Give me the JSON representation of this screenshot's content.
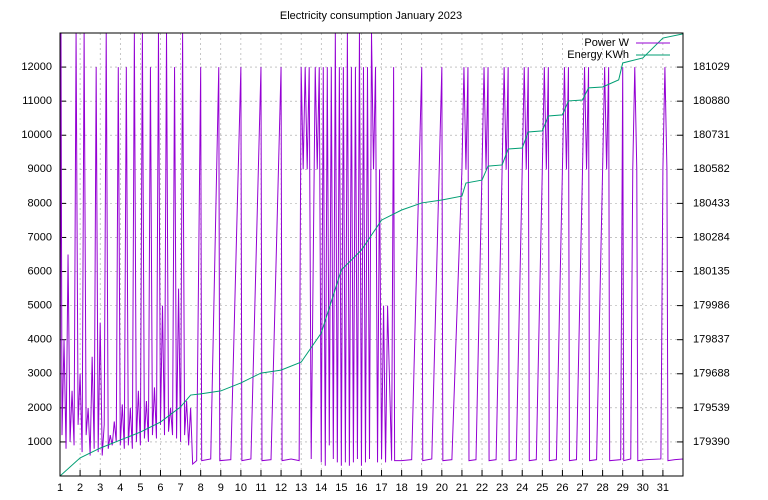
{
  "chart_data": {
    "type": "line",
    "title": "Electricity consumption January 2023",
    "xlim": [
      1,
      32
    ],
    "xticks": [
      1,
      2,
      3,
      4,
      5,
      6,
      7,
      8,
      9,
      10,
      11,
      12,
      13,
      14,
      15,
      16,
      17,
      18,
      19,
      20,
      21,
      22,
      23,
      24,
      25,
      26,
      27,
      28,
      29,
      30,
      31
    ],
    "ylim": [
      0,
      13000
    ],
    "yticks": [
      1000,
      2000,
      3000,
      4000,
      5000,
      6000,
      7000,
      8000,
      9000,
      10000,
      11000,
      12000
    ],
    "y2lim": [
      179241,
      181178
    ],
    "y2ticks": [
      179390,
      179539,
      179688,
      179837,
      179986,
      180135,
      180284,
      180433,
      180582,
      180731,
      180880,
      181029
    ],
    "grid": true,
    "legend": "top-right",
    "series": [
      {
        "name": "Power W",
        "color": "#9400d3",
        "x": [
          1.0,
          1.05,
          1.1,
          1.2,
          1.3,
          1.4,
          1.5,
          1.6,
          1.7,
          1.8,
          1.9,
          2.0,
          2.1,
          2.2,
          2.3,
          2.4,
          2.5,
          2.6,
          2.7,
          2.8,
          2.9,
          3.0,
          3.1,
          3.2,
          3.3,
          3.4,
          3.5,
          3.6,
          3.7,
          3.8,
          3.9,
          4.0,
          4.1,
          4.2,
          4.3,
          4.4,
          4.5,
          4.6,
          4.7,
          4.8,
          4.9,
          5.0,
          5.1,
          5.2,
          5.3,
          5.4,
          5.5,
          5.6,
          5.7,
          5.8,
          5.9,
          6.0,
          6.1,
          6.2,
          6.3,
          6.4,
          6.5,
          6.6,
          6.7,
          6.8,
          6.9,
          7.0,
          7.1,
          7.2,
          7.3,
          7.4,
          7.5,
          7.6,
          7.8,
          8.0,
          8.05,
          8.5,
          8.9,
          8.95,
          9.5,
          10.0,
          10.05,
          10.5,
          11.0,
          11.05,
          11.5,
          12.0,
          12.05,
          12.5,
          12.9,
          13.0,
          13.1,
          13.2,
          13.3,
          13.4,
          13.5,
          13.7,
          13.8,
          13.9,
          14.0,
          14.1,
          14.2,
          14.3,
          14.4,
          14.5,
          14.6,
          14.7,
          14.8,
          14.9,
          15.0,
          15.1,
          15.2,
          15.3,
          15.4,
          15.5,
          15.6,
          15.7,
          15.8,
          15.9,
          16.0,
          16.1,
          16.2,
          16.3,
          16.4,
          16.5,
          16.6,
          16.7,
          16.8,
          16.9,
          17.0,
          17.1,
          17.2,
          17.3,
          17.5,
          17.6,
          17.65,
          18.0,
          18.5,
          19.0,
          19.05,
          19.5,
          20.0,
          20.05,
          20.5,
          21.0,
          21.1,
          21.2,
          21.3,
          21.35,
          21.7,
          22.0,
          22.1,
          22.2,
          22.3,
          22.35,
          22.7,
          23.0,
          23.1,
          23.2,
          23.3,
          23.35,
          23.7,
          24.0,
          24.1,
          24.2,
          24.3,
          24.35,
          24.7,
          25.0,
          25.1,
          25.2,
          25.3,
          25.35,
          25.7,
          26.0,
          26.1,
          26.2,
          26.3,
          26.35,
          26.7,
          27.0,
          27.1,
          27.2,
          27.3,
          27.35,
          27.7,
          28.0,
          28.1,
          28.2,
          28.3,
          28.35,
          28.9,
          29.0,
          29.05,
          29.4,
          29.5,
          29.6,
          29.7,
          29.75,
          30.2,
          30.9,
          31.0,
          31.1,
          31.2,
          31.25,
          31.6,
          32.0
        ],
        "values": [
          900,
          13000,
          1200,
          4000,
          800,
          6500,
          1000,
          2500,
          900,
          13000,
          1500,
          3000,
          700,
          13000,
          1200,
          2000,
          600,
          3500,
          800,
          12000,
          700,
          4500,
          600,
          1500,
          13000,
          800,
          1200,
          900,
          1600,
          1000,
          12000,
          900,
          2100,
          800,
          12000,
          900,
          2000,
          800,
          13000,
          1000,
          2500,
          900,
          13000,
          1100,
          2200,
          1000,
          12000,
          1200,
          2600,
          1100,
          13000,
          1500,
          5000,
          1200,
          13000,
          1300,
          2000,
          1200,
          12000,
          1100,
          5500,
          1000,
          13000,
          1200,
          2200,
          900,
          2000,
          350,
          450,
          12000,
          450,
          500,
          12000,
          450,
          480,
          12000,
          450,
          500,
          12000,
          450,
          480,
          12000,
          450,
          500,
          450,
          12000,
          9000,
          12000,
          9000,
          12000,
          500,
          12000,
          9000,
          12000,
          400,
          12000,
          300,
          12000,
          900,
          12000,
          500,
          13000,
          400,
          12000,
          300,
          12000,
          400,
          13000,
          300,
          12000,
          400,
          12000,
          500,
          13000,
          300,
          12000,
          400,
          12000,
          500,
          13000,
          9000,
          12000,
          400,
          9000,
          500,
          5000,
          400,
          5000,
          450,
          12000,
          450,
          450,
          480,
          12000,
          450,
          500,
          12000,
          450,
          480,
          9000,
          12000,
          9000,
          12000,
          450,
          480,
          9000,
          12000,
          9000,
          12000,
          450,
          480,
          9000,
          12000,
          9000,
          12000,
          450,
          480,
          9000,
          12000,
          9000,
          12000,
          450,
          480,
          9000,
          12000,
          9000,
          12000,
          450,
          480,
          9000,
          12000,
          9000,
          12000,
          450,
          480,
          9000,
          12000,
          9000,
          12000,
          450,
          480,
          9000,
          12000,
          9000,
          12000,
          450,
          480,
          12000,
          450,
          500,
          9000,
          12000,
          9000,
          450,
          480,
          500,
          9000,
          12000,
          9000,
          450,
          480,
          500
        ]
      },
      {
        "name": "Energy KWh",
        "color": "#009e73",
        "axis": "y2",
        "x": [
          1,
          2,
          3,
          4,
          5,
          6,
          7,
          7.5,
          8,
          9,
          10,
          11,
          12,
          13,
          14,
          15,
          16,
          17,
          18,
          19,
          20,
          21,
          21.2,
          22,
          22.3,
          23,
          23.3,
          24,
          24.3,
          25,
          25.3,
          26,
          26.3,
          27,
          27.3,
          28,
          28.8,
          29,
          30,
          31,
          32
        ],
        "values": [
          179241,
          179320,
          179363,
          179398,
          179433,
          179477,
          179543,
          179595,
          179600,
          179613,
          179648,
          179691,
          179704,
          179739,
          179866,
          180142,
          180229,
          180360,
          180404,
          180435,
          180448,
          180465,
          180522,
          180535,
          180596,
          180601,
          180671,
          180675,
          180745,
          180750,
          180815,
          180820,
          180881,
          180885,
          180938,
          180942,
          180973,
          181047,
          181069,
          181156,
          181174
        ]
      }
    ]
  }
}
